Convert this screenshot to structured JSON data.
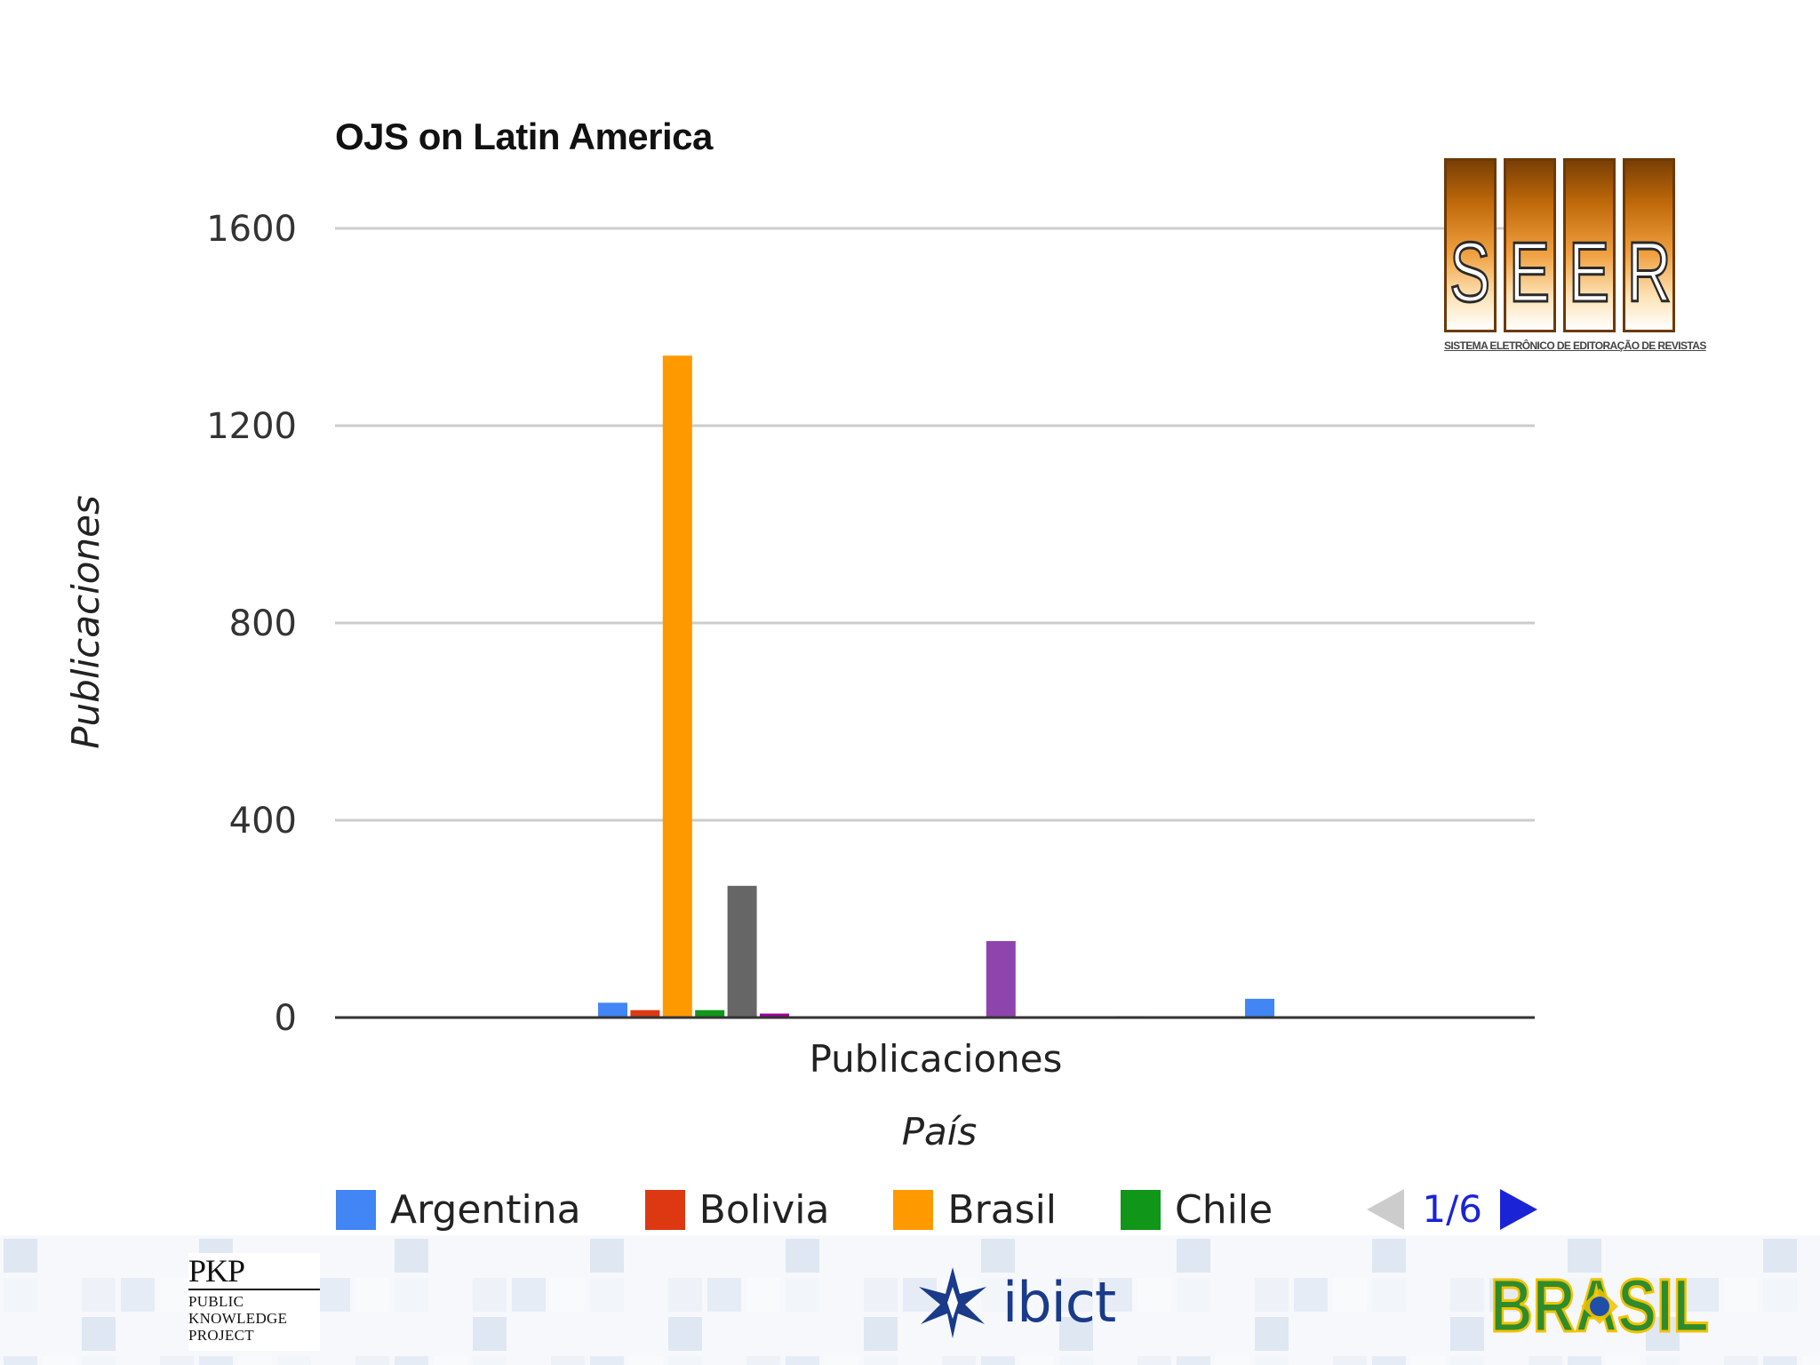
{
  "chart_data": {
    "type": "bar",
    "title": "OJS on Latin America",
    "xlabel": "País",
    "ylabel": "Publicaciones",
    "categories": [
      "Publicaciones"
    ],
    "ylim": [
      0,
      1600
    ],
    "yticks": [
      0,
      400,
      800,
      1200,
      1600
    ],
    "yticks_labels": [
      "0",
      "400",
      "800",
      "1200",
      "1600"
    ],
    "grid": true,
    "legend_position": "bottom",
    "series": [
      {
        "name": "Argentina",
        "color": "#4285f4",
        "values": [
          30
        ]
      },
      {
        "name": "Bolivia",
        "color": "#dc3912",
        "values": [
          15
        ]
      },
      {
        "name": "Brasil",
        "color": "#ff9900",
        "values": [
          1342
        ]
      },
      {
        "name": "Chile",
        "color": "#109618",
        "values": [
          15
        ]
      },
      {
        "color": "#666666",
        "values": [
          267
        ]
      },
      {
        "color": "#990099",
        "values": [
          8
        ]
      },
      {
        "values": [
          0
        ]
      },
      {
        "values": [
          0
        ]
      },
      {
        "values": [
          0
        ]
      },
      {
        "values": [
          0
        ]
      },
      {
        "values": [
          0
        ]
      },
      {
        "values": [
          0
        ]
      },
      {
        "color": "#8e44ad",
        "values": [
          155
        ]
      },
      {
        "values": [
          0
        ]
      },
      {
        "values": [
          0
        ]
      },
      {
        "values": [
          0
        ]
      },
      {
        "color": "#dddddd",
        "values": [
          3
        ]
      },
      {
        "values": [
          0
        ]
      },
      {
        "values": [
          0
        ]
      },
      {
        "values": [
          0
        ]
      },
      {
        "color": "#4285f4",
        "values": [
          38
        ]
      }
    ]
  },
  "legend": {
    "items": [
      {
        "label": "Argentina",
        "color": "#4285f4"
      },
      {
        "label": "Bolivia",
        "color": "#dc3912"
      },
      {
        "label": "Brasil",
        "color": "#ff9900"
      },
      {
        "label": "Chile",
        "color": "#109618"
      }
    ],
    "pager_text": "1/6"
  },
  "logos": {
    "seer": {
      "letters": [
        "S",
        "E",
        "E",
        "R"
      ],
      "subtitle": "SISTEMA ELETRÔNICO DE EDITORAÇÃO DE REVISTAS"
    },
    "pkp": {
      "mark": "PKP",
      "lines": [
        "PUBLIC",
        "KNOWLEDGE",
        "PROJECT"
      ]
    },
    "ibict": {
      "text": "ibict"
    },
    "brasil": {
      "text": "BRASIL"
    }
  }
}
